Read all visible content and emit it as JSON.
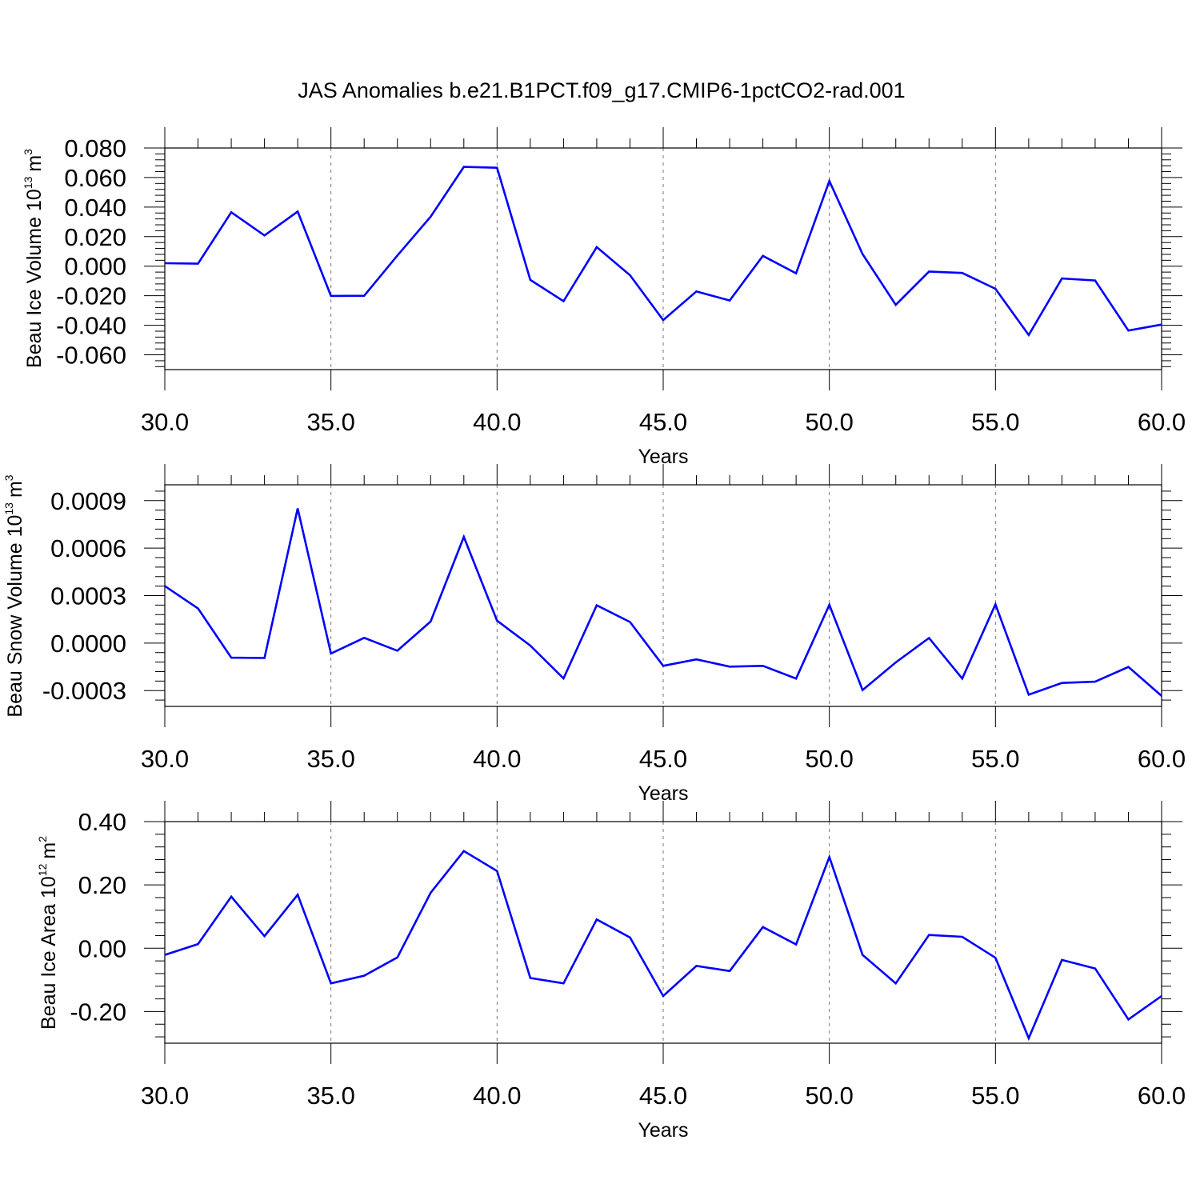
{
  "title": "JAS Anomalies b.e21.B1PCT.f09_g17.CMIP6-1pctCO2-rad.001",
  "colors": {
    "line": "#0000ff",
    "axis": "#000000",
    "grid": "#777777",
    "background": "#ffffff"
  },
  "chart_data": [
    {
      "type": "line",
      "ylabel": {
        "text": "Beau Ice Volume 10",
        "exp": "13",
        "unit": "m",
        "unit_exp": "3"
      },
      "xlabel": "Years",
      "xlim": [
        30,
        60
      ],
      "ylim": [
        -0.07,
        0.08
      ],
      "xticks": [
        30,
        35,
        40,
        45,
        50,
        55,
        60
      ],
      "xtick_labels": [
        "30.0",
        "35.0",
        "40.0",
        "45.0",
        "50.0",
        "55.0",
        "60.0"
      ],
      "yticks": [
        -0.06,
        -0.04,
        -0.02,
        0.0,
        0.02,
        0.04,
        0.06,
        0.08
      ],
      "ytick_labels": [
        "-0.060",
        "-0.040",
        "-0.020",
        "0.000",
        "0.020",
        "0.040",
        "0.060",
        "0.080"
      ],
      "vgrid": [
        35,
        40,
        45,
        50,
        55
      ],
      "x": [
        30,
        31,
        32,
        33,
        34,
        35,
        36,
        37,
        38,
        39,
        40,
        41,
        42,
        43,
        44,
        45,
        46,
        47,
        48,
        49,
        50,
        51,
        52,
        53,
        54,
        55,
        56,
        57,
        58,
        59,
        60
      ],
      "values": [
        0.002,
        0.0017,
        0.0365,
        0.0208,
        0.037,
        -0.0201,
        -0.02,
        0.0072,
        0.0335,
        0.0672,
        0.0666,
        -0.0093,
        -0.0237,
        0.0129,
        -0.0061,
        -0.0365,
        -0.0171,
        -0.0232,
        0.007,
        -0.0048,
        0.0577,
        0.0082,
        -0.0262,
        -0.0036,
        -0.0046,
        -0.0153,
        -0.0466,
        -0.0083,
        -0.0097,
        -0.0436,
        -0.0395
      ]
    },
    {
      "type": "line",
      "ylabel": {
        "text": "Beau Snow Volume 10",
        "exp": "13",
        "unit": "m",
        "unit_exp": "3"
      },
      "xlabel": "Years",
      "xlim": [
        30,
        60
      ],
      "ylim": [
        -0.0004,
        0.001
      ],
      "xticks": [
        30,
        35,
        40,
        45,
        50,
        55,
        60
      ],
      "xtick_labels": [
        "30.0",
        "35.0",
        "40.0",
        "45.0",
        "50.0",
        "55.0",
        "60.0"
      ],
      "yticks": [
        -0.0003,
        0.0,
        0.0003,
        0.0006,
        0.0009
      ],
      "ytick_labels": [
        "-0.0003",
        "0.0000",
        "0.0003",
        "0.0006",
        "0.0009"
      ],
      "vgrid": [
        35,
        40,
        45,
        50,
        55
      ],
      "x": [
        30,
        31,
        32,
        33,
        34,
        35,
        36,
        37,
        38,
        39,
        40,
        41,
        42,
        43,
        44,
        45,
        46,
        47,
        48,
        49,
        50,
        51,
        52,
        53,
        54,
        55,
        56,
        57,
        58,
        59,
        60
      ],
      "values": [
        0.00036,
        0.000219,
        -9.2e-05,
        -9.4e-05,
        0.000851,
        -6.6e-05,
        3.3e-05,
        -4.8e-05,
        0.000137,
        0.000671,
        0.000142,
        -1.6e-05,
        -0.000223,
        0.000239,
        0.000133,
        -0.000144,
        -0.000103,
        -0.000149,
        -0.000144,
        -0.000224,
        0.000242,
        -0.000297,
        -0.000122,
        3.2e-05,
        -0.000224,
        0.000245,
        -0.000326,
        -0.000252,
        -0.000244,
        -0.000151,
        -0.000334
      ]
    },
    {
      "type": "line",
      "ylabel": {
        "text": "Beau Ice Area 10",
        "exp": "12",
        "unit": "m",
        "unit_exp": "2"
      },
      "xlabel": "Years",
      "xlim": [
        30,
        60
      ],
      "ylim": [
        -0.3,
        0.4
      ],
      "xticks": [
        30,
        35,
        40,
        45,
        50,
        55,
        60
      ],
      "xtick_labels": [
        "30.0",
        "35.0",
        "40.0",
        "45.0",
        "50.0",
        "55.0",
        "60.0"
      ],
      "yticks": [
        -0.2,
        0.0,
        0.2,
        0.4
      ],
      "ytick_labels": [
        "-0.20",
        "0.00",
        "0.20",
        "0.40"
      ],
      "vgrid": [
        35,
        40,
        45,
        50,
        55
      ],
      "x": [
        30,
        31,
        32,
        33,
        34,
        35,
        36,
        37,
        38,
        39,
        40,
        41,
        42,
        43,
        44,
        45,
        46,
        47,
        48,
        49,
        50,
        51,
        52,
        53,
        54,
        55,
        56,
        57,
        58,
        59,
        60
      ],
      "values": [
        -0.021,
        0.013,
        0.163,
        0.038,
        0.169,
        -0.111,
        -0.087,
        -0.029,
        0.175,
        0.307,
        0.244,
        -0.094,
        -0.111,
        0.091,
        0.034,
        -0.151,
        -0.056,
        -0.072,
        0.067,
        0.012,
        0.288,
        -0.021,
        -0.111,
        0.042,
        0.036,
        -0.03,
        -0.284,
        -0.037,
        -0.064,
        -0.225,
        -0.151
      ]
    }
  ]
}
